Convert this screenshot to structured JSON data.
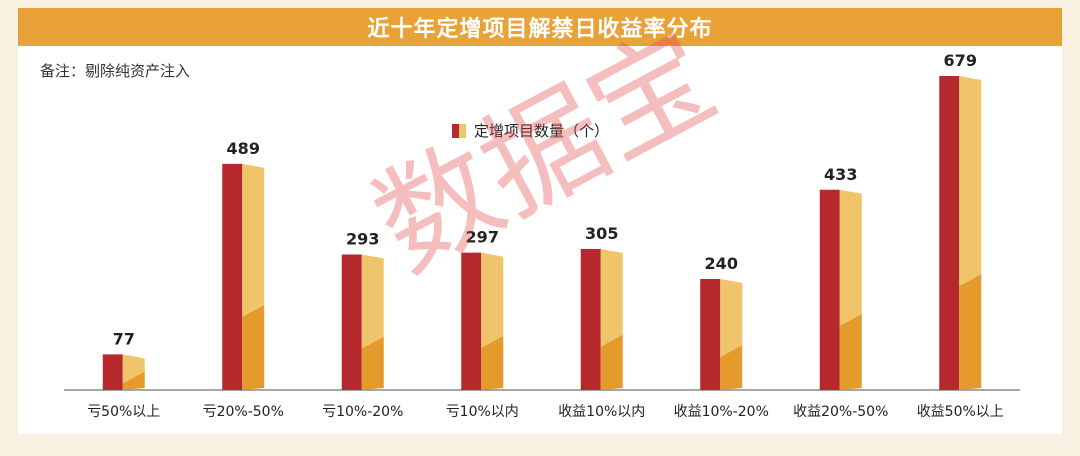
{
  "header": {
    "title": "近十年定增项目解禁日收益率分布"
  },
  "note": "备注：剔除纯资产注入",
  "watermark": "数据宝",
  "colors": {
    "title_bar": "#e8a237",
    "bar_front": "#b5282c",
    "bar_side_top": "#f0c46a",
    "bar_side_bottom": "#e59a2c",
    "axis": "#8a8a8a"
  },
  "chart_data": {
    "type": "bar",
    "categories": [
      "亏50%以上",
      "亏20%-50%",
      "亏10%-20%",
      "亏10%以内",
      "收益10%以内",
      "收益10%-20%",
      "收益20%-50%",
      "收益50%以上"
    ],
    "series": [
      {
        "name": "定增项目数量（个）",
        "values": [
          77,
          489,
          293,
          297,
          305,
          240,
          433,
          679
        ]
      }
    ],
    "data_labels": [
      "77",
      "489",
      "293",
      "297",
      "305",
      "240",
      "433",
      "679"
    ],
    "ylim": [
      0,
      700
    ],
    "legend": "top-center",
    "grid": false
  }
}
